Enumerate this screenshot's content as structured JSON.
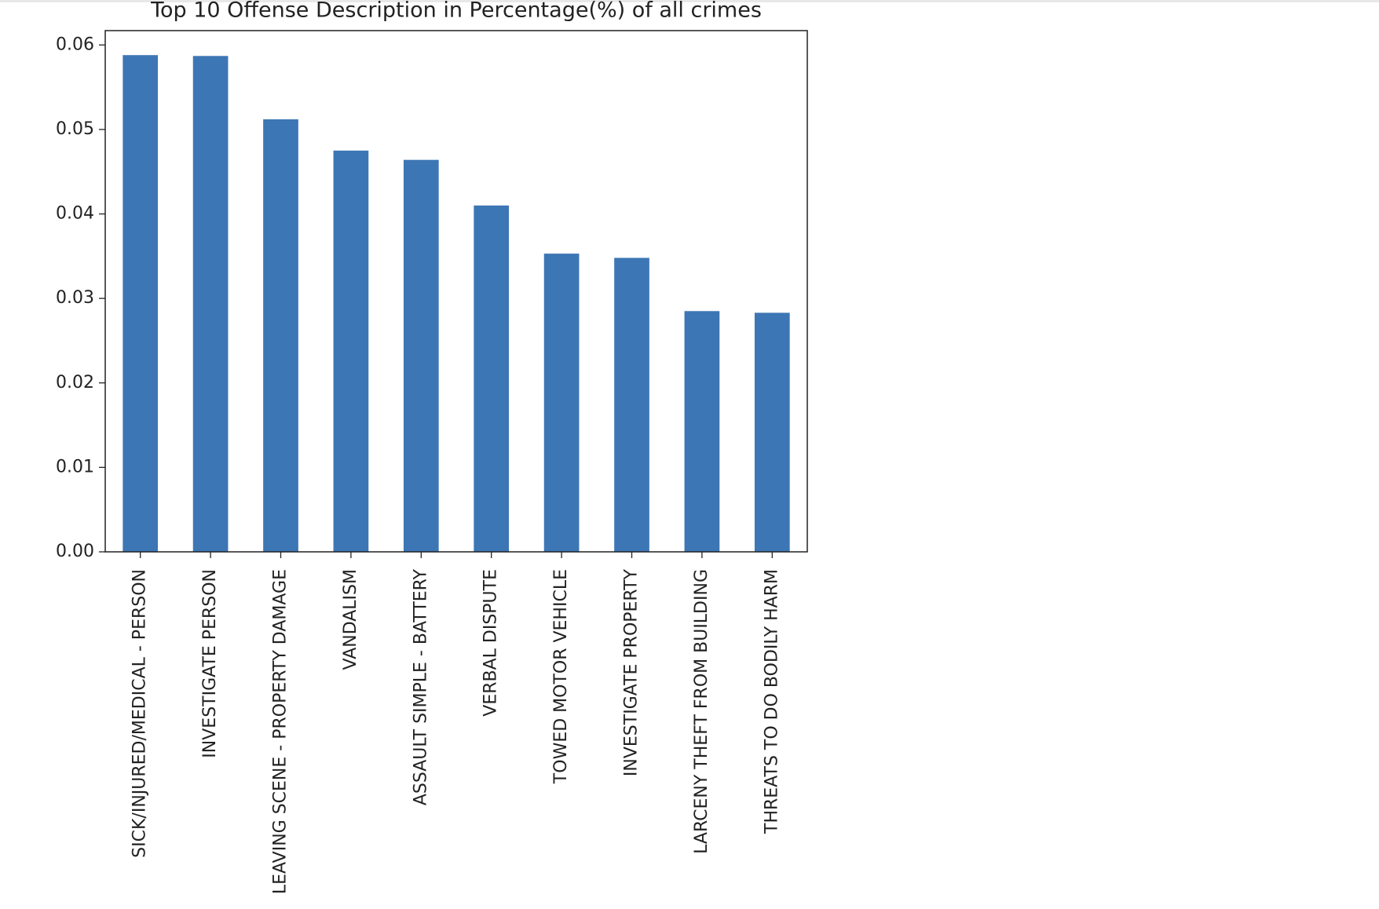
{
  "chart_data": {
    "type": "bar",
    "title": "Top 10 Offense Description in Percentage(%) of all crimes",
    "categories": [
      "SICK/INJURED/MEDICAL - PERSON",
      "INVESTIGATE PERSON",
      "LEAVING SCENE - PROPERTY DAMAGE",
      "VANDALISM",
      "ASSAULT SIMPLE - BATTERY",
      "VERBAL DISPUTE",
      "TOWED MOTOR VEHICLE",
      "INVESTIGATE PROPERTY",
      "LARCENY THEFT FROM BUILDING",
      "THREATS TO DO BODILY HARM"
    ],
    "values": [
      0.0588,
      0.0587,
      0.0512,
      0.0475,
      0.0464,
      0.041,
      0.0353,
      0.0348,
      0.0285,
      0.0283
    ],
    "color": "#3d76b4",
    "ylim": [
      0,
      0.0617
    ],
    "yticks": [
      {
        "value": 0,
        "label": "0.00"
      },
      {
        "value": 0.01,
        "label": "0.01"
      },
      {
        "value": 0.02,
        "label": "0.02"
      },
      {
        "value": 0.03,
        "label": "0.03"
      },
      {
        "value": 0.04,
        "label": "0.04"
      },
      {
        "value": 0.05,
        "label": "0.05"
      },
      {
        "value": 0.06,
        "label": "0.06"
      }
    ],
    "grid": false
  }
}
